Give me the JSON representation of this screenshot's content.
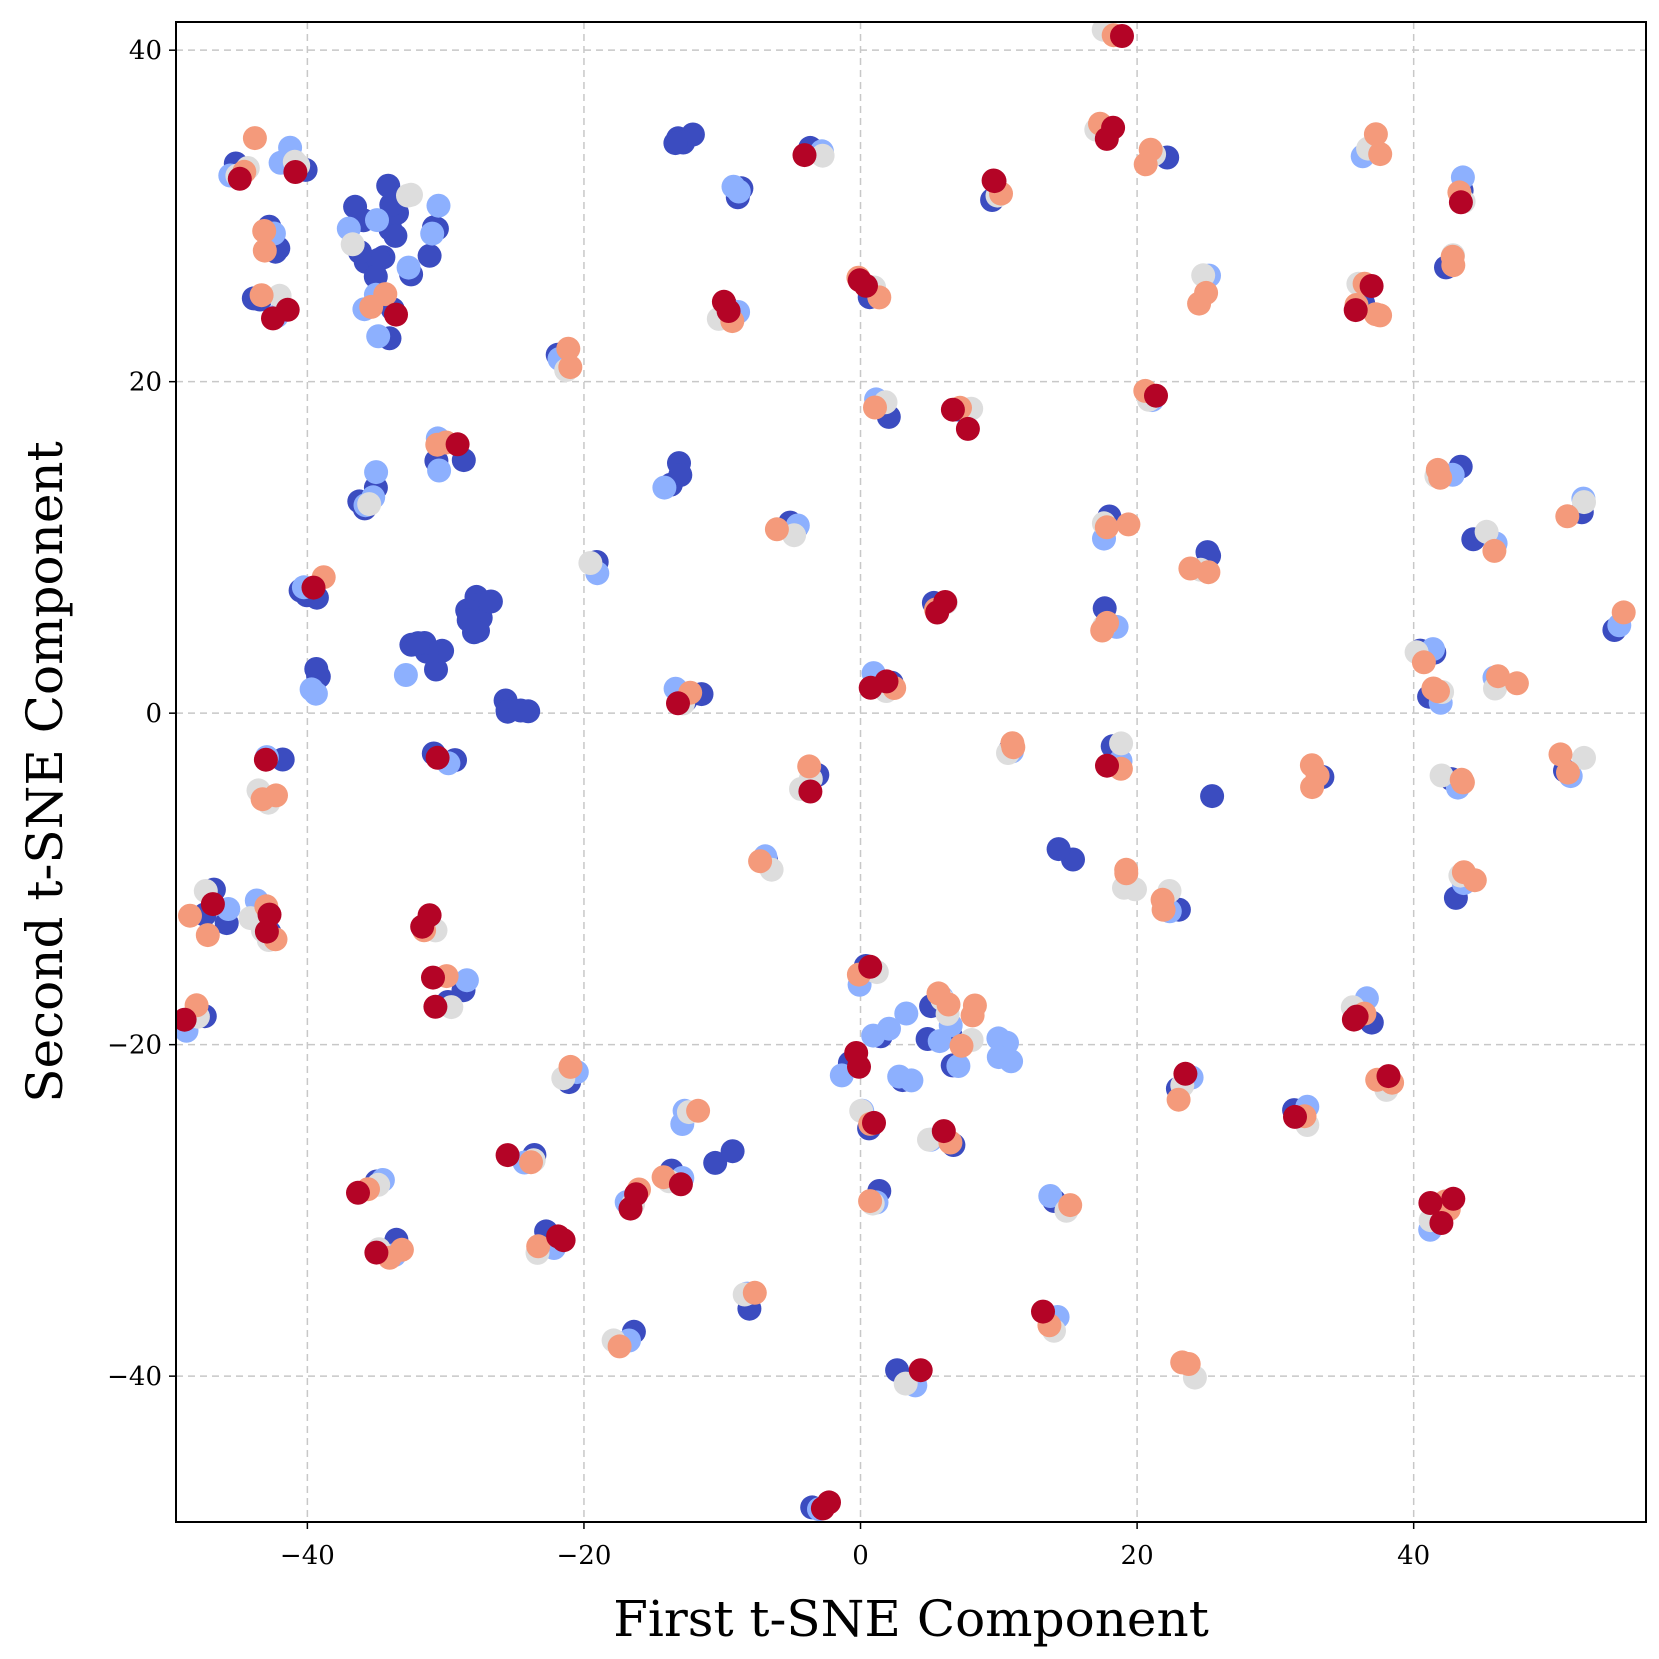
{
  "chart_data": {
    "type": "scatter",
    "title": "",
    "xlabel": "First t-SNE Component",
    "ylabel": "Second t-SNE Component",
    "xlim": [
      -49.5,
      56.8
    ],
    "ylim": [
      -48.8,
      41.7
    ],
    "xticks": [
      -40,
      -20,
      0,
      20,
      40
    ],
    "yticks": [
      -40,
      -20,
      0,
      20,
      40
    ],
    "xtick_labels": [
      "−40",
      "−20",
      "0",
      "20",
      "40"
    ],
    "ytick_labels": [
      "−40",
      "−20",
      "0",
      "20",
      "40"
    ],
    "grid": true,
    "colormap": "coolwarm",
    "color_levels": [
      "#3b4cc0",
      "#8db0fe",
      "#dddddd",
      "#f49a7b",
      "#b40426"
    ],
    "clusters": [
      {
        "x": -44.5,
        "y": 33.5,
        "c": [
          0,
          1,
          2,
          3,
          4,
          3,
          2,
          0
        ]
      },
      {
        "x": -43.0,
        "y": 28.5,
        "c": [
          0,
          0,
          1,
          3,
          3,
          0
        ]
      },
      {
        "x": -42.5,
        "y": 24.5,
        "c": [
          0,
          1,
          2,
          3,
          4,
          4,
          0
        ]
      },
      {
        "x": -40.5,
        "y": 33.5,
        "c": [
          0,
          1,
          2,
          2,
          4,
          0,
          1
        ]
      },
      {
        "x": -33.5,
        "y": 29.0,
        "c": [
          0,
          0,
          0,
          0,
          0,
          1,
          1,
          2,
          0,
          0,
          0,
          0,
          1,
          2,
          0,
          0,
          0,
          0,
          0,
          1,
          2,
          0,
          0,
          1
        ]
      },
      {
        "x": -34.5,
        "y": 24.0,
        "c": [
          0,
          1,
          1,
          3,
          3,
          4,
          1,
          0
        ]
      },
      {
        "x": -35.0,
        "y": 13.5,
        "c": [
          0,
          0,
          1,
          1,
          2,
          0,
          1
        ]
      },
      {
        "x": -30.0,
        "y": 15.5,
        "c": [
          0,
          1,
          1,
          3,
          3,
          4,
          0
        ]
      },
      {
        "x": -39.5,
        "y": 7.5,
        "c": [
          0,
          0,
          1,
          3,
          4,
          0
        ]
      },
      {
        "x": -39.5,
        "y": 2.0,
        "c": [
          0,
          0,
          1,
          1,
          0
        ]
      },
      {
        "x": -31.5,
        "y": 3.0,
        "c": [
          0,
          0,
          0,
          0,
          1,
          0,
          0
        ]
      },
      {
        "x": -27.5,
        "y": 6.0,
        "c": [
          0,
          0,
          0,
          0,
          0,
          0,
          0,
          0,
          0
        ]
      },
      {
        "x": -25.0,
        "y": 0.5,
        "c": [
          0,
          0,
          0,
          0,
          0
        ]
      },
      {
        "x": -30.0,
        "y": -3.0,
        "c": [
          0,
          0,
          1,
          4
        ]
      },
      {
        "x": -42.5,
        "y": -4.0,
        "c": [
          0,
          1,
          2,
          3,
          3,
          4,
          2
        ]
      },
      {
        "x": -47.0,
        "y": -12.0,
        "c": [
          0,
          0,
          1,
          2,
          3,
          3,
          4,
          0
        ]
      },
      {
        "x": -43.0,
        "y": -12.5,
        "c": [
          0,
          1,
          2,
          2,
          3,
          4,
          4,
          3,
          2
        ]
      },
      {
        "x": -48.0,
        "y": -18.5,
        "c": [
          0,
          1,
          2,
          3,
          4
        ]
      },
      {
        "x": -31.0,
        "y": -12.5,
        "c": [
          1,
          2,
          3,
          4,
          4
        ]
      },
      {
        "x": -30.0,
        "y": -16.5,
        "c": [
          0,
          1,
          2,
          3,
          4,
          4,
          0
        ]
      },
      {
        "x": -21.0,
        "y": 21.5,
        "c": [
          0,
          1,
          2,
          3
        ]
      },
      {
        "x": -19.5,
        "y": 9.0,
        "c": [
          0,
          1,
          2
        ]
      },
      {
        "x": -14.0,
        "y": 14.5,
        "c": [
          0,
          0,
          0,
          1
        ]
      },
      {
        "x": -13.0,
        "y": 35.0,
        "c": [
          0,
          0,
          0,
          0
        ]
      },
      {
        "x": -9.5,
        "y": 31.5,
        "c": [
          0,
          0,
          1,
          1
        ]
      },
      {
        "x": -9.5,
        "y": 24.5,
        "c": [
          0,
          1,
          2,
          3,
          4,
          4
        ]
      },
      {
        "x": -12.5,
        "y": 1.0,
        "c": [
          0,
          1,
          2,
          3,
          4,
          0
        ]
      },
      {
        "x": -5.0,
        "y": 11.0,
        "c": [
          0,
          0,
          1,
          2,
          3
        ]
      },
      {
        "x": -4.0,
        "y": -4.0,
        "c": [
          0,
          2,
          2,
          3,
          4
        ]
      },
      {
        "x": -7.0,
        "y": -9.5,
        "c": [
          0,
          1,
          2,
          3
        ]
      },
      {
        "x": -3.0,
        "y": 33.8,
        "c": [
          0,
          1,
          2,
          4
        ]
      },
      {
        "x": 0.5,
        "y": 25.5,
        "c": [
          0,
          2,
          3,
          3,
          4,
          4
        ]
      },
      {
        "x": 2.0,
        "y": 18.8,
        "c": [
          0,
          1,
          2,
          3,
          0
        ]
      },
      {
        "x": 7.5,
        "y": 17.8,
        "c": [
          0,
          2,
          3,
          4,
          4
        ]
      },
      {
        "x": 1.5,
        "y": 2.0,
        "c": [
          0,
          1,
          2,
          3,
          4,
          4
        ]
      },
      {
        "x": 5.5,
        "y": 6.0,
        "c": [
          0,
          2,
          3,
          4,
          4
        ]
      },
      {
        "x": 9.5,
        "y": 31.5,
        "c": [
          0,
          2,
          3,
          4,
          4
        ]
      },
      {
        "x": 11.0,
        "y": -1.5,
        "c": [
          0,
          1,
          2,
          3,
          3
        ]
      },
      {
        "x": 17.5,
        "y": 35.5,
        "c": [
          2,
          3,
          4,
          4
        ]
      },
      {
        "x": 18.5,
        "y": 41.0,
        "c": [
          2,
          3,
          4
        ]
      },
      {
        "x": 21.5,
        "y": 33.5,
        "c": [
          0,
          2,
          3,
          3
        ]
      },
      {
        "x": 21.0,
        "y": 19.0,
        "c": [
          0,
          1,
          2,
          3,
          4
        ]
      },
      {
        "x": 18.5,
        "y": 11.0,
        "c": [
          0,
          1,
          2,
          3,
          3
        ]
      },
      {
        "x": 18.0,
        "y": 5.5,
        "c": [
          0,
          1,
          2,
          3,
          3
        ]
      },
      {
        "x": 18.5,
        "y": -2.5,
        "c": [
          0,
          1,
          2,
          3,
          4
        ]
      },
      {
        "x": 24.5,
        "y": 9.0,
        "c": [
          0,
          0,
          2,
          3,
          3
        ]
      },
      {
        "x": 25.0,
        "y": 25.5,
        "c": [
          1,
          2,
          3,
          3
        ]
      },
      {
        "x": 19.0,
        "y": -10.0,
        "c": [
          2,
          2,
          3,
          3
        ]
      },
      {
        "x": 22.5,
        "y": -11.5,
        "c": [
          0,
          1,
          2,
          3,
          3
        ]
      },
      {
        "x": 25.5,
        "y": -5.5,
        "c": [
          0
        ]
      },
      {
        "x": 14.5,
        "y": -8.5,
        "c": [
          0,
          0
        ]
      },
      {
        "x": 4.5,
        "y": -19.5,
        "c": [
          0,
          0,
          0,
          1,
          1,
          1,
          1,
          2,
          0,
          1,
          1,
          0,
          1,
          3,
          1,
          0
        ]
      },
      {
        "x": 7.0,
        "y": -17.5,
        "c": [
          1,
          2,
          3,
          3,
          3,
          3,
          2
        ]
      },
      {
        "x": 10.0,
        "y": -20.5,
        "c": [
          1,
          1,
          1,
          1
        ]
      },
      {
        "x": 0.5,
        "y": -16.0,
        "c": [
          0,
          1,
          2,
          3,
          4
        ]
      },
      {
        "x": -1.0,
        "y": -21.0,
        "c": [
          0,
          1,
          4,
          4
        ]
      },
      {
        "x": 0.5,
        "y": -24.5,
        "c": [
          0,
          1,
          2,
          3,
          4
        ]
      },
      {
        "x": 6.0,
        "y": -25.5,
        "c": [
          0,
          1,
          2,
          3,
          4
        ]
      },
      {
        "x": 1.0,
        "y": -29.0,
        "c": [
          0,
          1,
          2,
          3
        ]
      },
      {
        "x": -21.0,
        "y": -21.5,
        "c": [
          0,
          1,
          2,
          3
        ]
      },
      {
        "x": -24.5,
        "y": -26.5,
        "c": [
          0,
          1,
          2,
          3,
          4
        ]
      },
      {
        "x": -12.5,
        "y": -24.0,
        "c": [
          1,
          2,
          3,
          1
        ]
      },
      {
        "x": -10.0,
        "y": -27.0,
        "c": [
          0,
          0
        ]
      },
      {
        "x": -13.5,
        "y": -28.5,
        "c": [
          0,
          1,
          2,
          3,
          4
        ]
      },
      {
        "x": -16.0,
        "y": -29.5,
        "c": [
          0,
          1,
          2,
          3,
          4,
          4
        ]
      },
      {
        "x": -22.5,
        "y": -32.0,
        "c": [
          0,
          1,
          2,
          3,
          4,
          4
        ]
      },
      {
        "x": -35.5,
        "y": -28.5,
        "c": [
          0,
          1,
          2,
          3,
          4
        ]
      },
      {
        "x": -34.0,
        "y": -32.5,
        "c": [
          0,
          1,
          2,
          3,
          4,
          3
        ]
      },
      {
        "x": -17.0,
        "y": -37.5,
        "c": [
          0,
          1,
          2,
          3
        ]
      },
      {
        "x": -8.0,
        "y": -35.0,
        "c": [
          0,
          1,
          2,
          3
        ]
      },
      {
        "x": -3.0,
        "y": -48.0,
        "c": [
          0,
          1,
          4,
          4
        ]
      },
      {
        "x": 3.5,
        "y": -40.0,
        "c": [
          0,
          1,
          2,
          4
        ]
      },
      {
        "x": 13.5,
        "y": -37.0,
        "c": [
          0,
          1,
          2,
          3,
          4
        ]
      },
      {
        "x": 14.5,
        "y": -29.5,
        "c": [
          0,
          1,
          2,
          3
        ]
      },
      {
        "x": 23.5,
        "y": -22.5,
        "c": [
          0,
          1,
          2,
          3,
          4
        ]
      },
      {
        "x": 23.5,
        "y": -40.0,
        "c": [
          2,
          3,
          3
        ]
      },
      {
        "x": 32.0,
        "y": -24.5,
        "c": [
          0,
          1,
          2,
          3,
          4
        ]
      },
      {
        "x": 32.5,
        "y": -3.5,
        "c": [
          0,
          3,
          3,
          3
        ]
      },
      {
        "x": 36.5,
        "y": -18.0,
        "c": [
          0,
          1,
          2,
          3,
          4,
          4
        ]
      },
      {
        "x": 37.5,
        "y": -22.5,
        "c": [
          2,
          3,
          3,
          4
        ]
      },
      {
        "x": 42.0,
        "y": -30.0,
        "c": [
          1,
          2,
          3,
          3,
          4,
          4,
          4
        ]
      },
      {
        "x": 43.5,
        "y": -10.5,
        "c": [
          0,
          1,
          2,
          3,
          3
        ]
      },
      {
        "x": 42.5,
        "y": -4.0,
        "c": [
          0,
          1,
          2,
          3,
          3
        ]
      },
      {
        "x": 42.0,
        "y": 1.5,
        "c": [
          0,
          1,
          2,
          3,
          3
        ]
      },
      {
        "x": 41.0,
        "y": 4.0,
        "c": [
          0,
          1,
          2,
          3,
          0
        ]
      },
      {
        "x": 46.5,
        "y": 2.0,
        "c": [
          1,
          2,
          3,
          3
        ]
      },
      {
        "x": 45.0,
        "y": 10.0,
        "c": [
          0,
          1,
          2,
          3
        ]
      },
      {
        "x": 42.5,
        "y": 14.5,
        "c": [
          0,
          1,
          2,
          3,
          3
        ]
      },
      {
        "x": 52.0,
        "y": 12.0,
        "c": [
          0,
          1,
          2,
          3
        ]
      },
      {
        "x": 51.5,
        "y": -3.0,
        "c": [
          0,
          1,
          2,
          3,
          3
        ]
      },
      {
        "x": 55.0,
        "y": 5.5,
        "c": [
          0,
          1,
          3
        ]
      },
      {
        "x": 42.0,
        "y": 27.5,
        "c": [
          0,
          2,
          3,
          3
        ]
      },
      {
        "x": 44.0,
        "y": 31.5,
        "c": [
          0,
          1,
          2,
          3,
          4
        ]
      },
      {
        "x": 37.0,
        "y": 34.0,
        "c": [
          1,
          2,
          3,
          3
        ]
      },
      {
        "x": 37.0,
        "y": 25.0,
        "c": [
          0,
          2,
          3,
          3,
          3,
          3,
          4,
          4
        ]
      },
      {
        "x": -21.5,
        "y": 20.5,
        "c": [
          3
        ]
      }
    ]
  }
}
